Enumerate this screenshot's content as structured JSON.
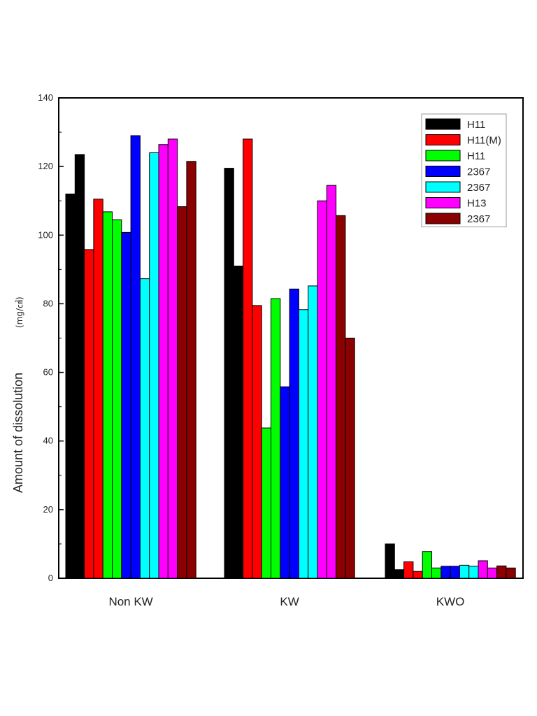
{
  "chart_data": {
    "type": "bar",
    "title": "",
    "xlabel": "",
    "ylabel": "Amount of dissolution",
    "ylabel_unit": "(mg/㎠)",
    "ylim": [
      0,
      140
    ],
    "yticks": [
      0,
      20,
      40,
      60,
      80,
      100,
      120,
      140
    ],
    "grid": false,
    "legend_position": "top-right",
    "categories": [
      "Non KW",
      "KW",
      "KWO"
    ],
    "series": [
      {
        "name": "H11",
        "color": "#000000",
        "values": [
          [
            112,
            123.5
          ],
          [
            119.5,
            91
          ],
          [
            10,
            2.5
          ]
        ]
      },
      {
        "name": "H11(M)",
        "color": "#ff0000",
        "values": [
          [
            95.8,
            110.5
          ],
          [
            128,
            79.5
          ],
          [
            4.8,
            2
          ]
        ]
      },
      {
        "name": "H11",
        "color": "#00ff00",
        "values": [
          [
            106.8,
            104.5
          ],
          [
            43.8,
            81.5
          ],
          [
            7.8,
            3
          ]
        ]
      },
      {
        "name": "2367",
        "color": "#0000ff",
        "values": [
          [
            100.8,
            129
          ],
          [
            55.8,
            84.3
          ],
          [
            3.5,
            3.5
          ]
        ]
      },
      {
        "name": "2367",
        "color": "#00ffff",
        "values": [
          [
            87.3,
            124
          ],
          [
            78.3,
            85.2
          ],
          [
            3.8,
            3.5
          ]
        ]
      },
      {
        "name": "H13",
        "color": "#ff00ff",
        "values": [
          [
            126.4,
            128
          ],
          [
            110,
            114.5
          ],
          [
            5.1,
            3
          ]
        ]
      },
      {
        "name": "2367",
        "color": "#8b0000",
        "values": [
          [
            108.3,
            121.5
          ],
          [
            105.7,
            70
          ],
          [
            3.6,
            3
          ]
        ]
      }
    ]
  }
}
